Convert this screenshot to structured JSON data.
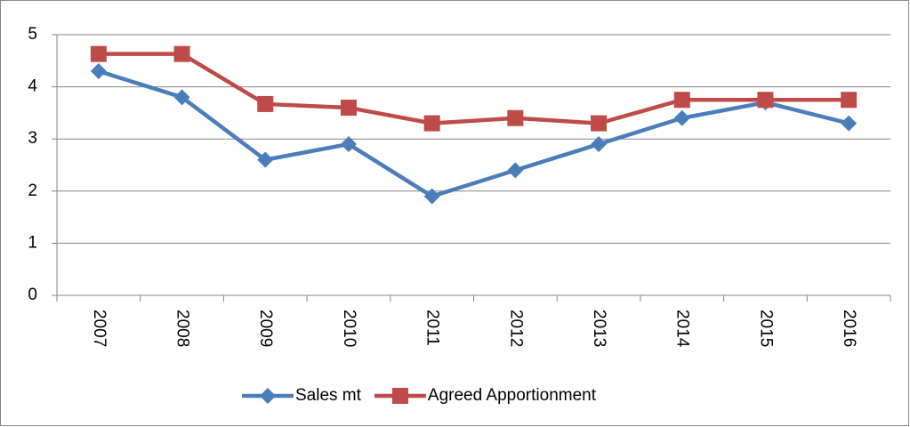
{
  "chart_data": {
    "type": "line",
    "categories": [
      "2007",
      "2008",
      "2009",
      "2010",
      "2011",
      "2012",
      "2013",
      "2014",
      "2015",
      "2016"
    ],
    "series": [
      {
        "name": "Sales mt",
        "color": "#4a7ebb",
        "marker": "diamond",
        "values": [
          4.3,
          3.8,
          2.6,
          2.9,
          1.9,
          2.4,
          2.9,
          3.4,
          3.7,
          3.3
        ]
      },
      {
        "name": "Agreed Apportionment",
        "color": "#be4b48",
        "marker": "square",
        "values": [
          4.63,
          4.63,
          3.67,
          3.6,
          3.3,
          3.4,
          3.3,
          3.75,
          3.75,
          3.75
        ]
      }
    ],
    "ylim": [
      0,
      5
    ],
    "yticks": [
      0,
      1,
      2,
      3,
      4,
      5
    ],
    "grid": true,
    "legend": "bottom"
  }
}
